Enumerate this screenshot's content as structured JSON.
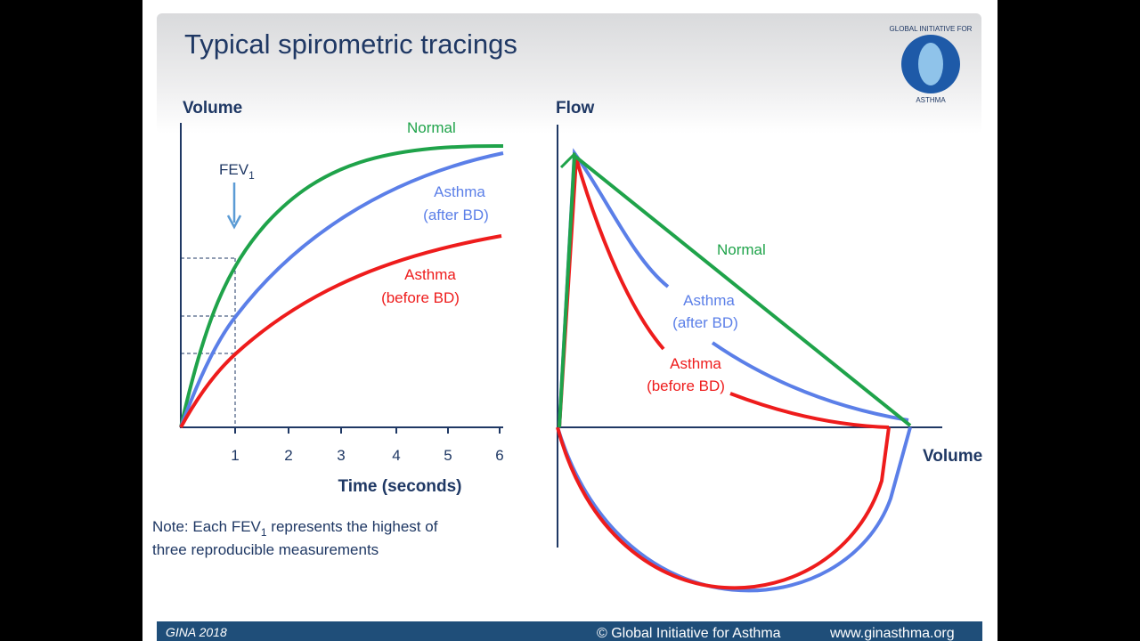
{
  "header": {
    "title": "Typical spirometric tracings",
    "logo_top": "GLOBAL INITIATIVE FOR",
    "logo_bottom": "ASTHMA"
  },
  "left_panel": {
    "y_label": "Volume",
    "x_label": "Time (seconds)",
    "x_ticks": [
      "1",
      "2",
      "3",
      "4",
      "5",
      "6"
    ],
    "fev_label": "FEV",
    "fev_sub": "1",
    "normal": "Normal",
    "after_bd": [
      "Asthma",
      "(after BD)"
    ],
    "before_bd": [
      "Asthma",
      "(before BD)"
    ]
  },
  "right_panel": {
    "y_label": "Flow",
    "x_label": "Volume",
    "normal": "Normal",
    "after_bd": [
      "Asthma",
      "(after BD)"
    ],
    "before_bd": [
      "Asthma",
      "(before BD)"
    ]
  },
  "note": {
    "pre": "Note:  Each FEV",
    "sub": "1",
    "post": " represents the highest of",
    "line2": "three reproducible measurements"
  },
  "footer": {
    "left": "GINA 2018",
    "copyright": "© Global Initiative for Asthma",
    "url": "www.ginasthma.org"
  }
}
